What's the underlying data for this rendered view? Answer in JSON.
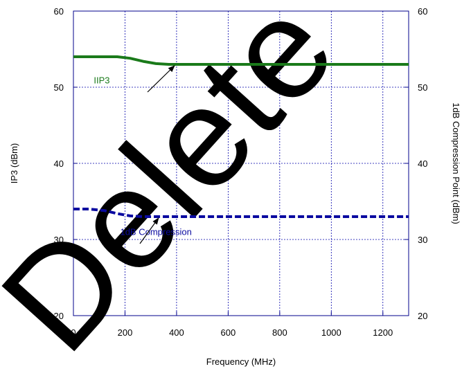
{
  "chart_data": {
    "type": "line",
    "xlabel": "Frequency (MHz)",
    "ylabel_left": "IP3 (dBm)",
    "ylabel_right": "1dB Compression Point  (dBm)",
    "xlim": [
      0,
      1300
    ],
    "ylim_left": [
      20,
      60
    ],
    "ylim_right": [
      20,
      60
    ],
    "x_ticks": [
      "0",
      "200",
      "400",
      "600",
      "800",
      "1000",
      "1200"
    ],
    "y_ticks_left": [
      "20",
      "30",
      "40",
      "50",
      "60"
    ],
    "y_ticks_right": [
      "20",
      "30",
      "40",
      "50",
      "60"
    ],
    "grid": true,
    "series": [
      {
        "name": "IIP3",
        "color": "#1a7a1a",
        "style": "solid",
        "axis": "left",
        "x": [
          0,
          100,
          170,
          220,
          270,
          320,
          370,
          400,
          500,
          700,
          1000,
          1300
        ],
        "y": [
          54,
          54,
          54,
          53.8,
          53.4,
          53.1,
          53.0,
          53.0,
          53.0,
          53.0,
          53.0,
          53.0
        ]
      },
      {
        "name": "1dB Compression",
        "color": "#0a0aa0",
        "style": "dashed",
        "axis": "right",
        "x": [
          0,
          60,
          120,
          170,
          220,
          270,
          320,
          400,
          600,
          900,
          1300
        ],
        "y": [
          34,
          34,
          33.8,
          33.4,
          33.1,
          33.0,
          33.0,
          33.0,
          33.0,
          33.0,
          33.0
        ]
      }
    ],
    "annotations": [
      {
        "text": "IIP3",
        "color": "#1a7a1a",
        "label_x": 110,
        "label_y": 50.5,
        "arrow_to_x": 392,
        "arrow_to_y": 53.0
      },
      {
        "text": "1dB Compression",
        "color": "#0a0aa0",
        "label_x": 320,
        "label_y": 30.6,
        "arrow_to_x": 330,
        "arrow_to_y": 33.0
      }
    ],
    "watermark": "Delete"
  }
}
